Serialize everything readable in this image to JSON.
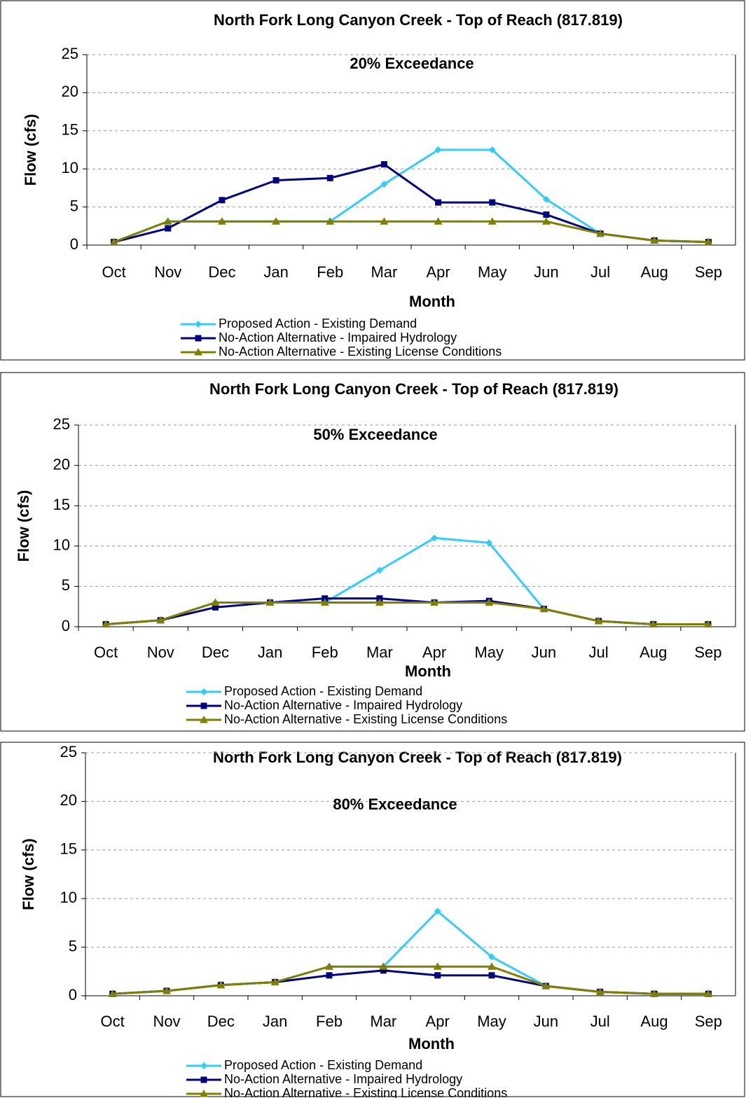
{
  "chart_data": [
    {
      "type": "line",
      "title": "North Fork Long Canyon Creek - Top of Reach (817.819)",
      "annotation": "20% Exceedance",
      "x_label": "Month",
      "y_label": "Flow (cfs)",
      "categories": [
        "Oct",
        "Nov",
        "Dec",
        "Jan",
        "Feb",
        "Mar",
        "Apr",
        "May",
        "Jun",
        "Jul",
        "Aug",
        "Sep"
      ],
      "ylim": [
        0,
        25
      ],
      "yticks": [
        0,
        5,
        10,
        15,
        20,
        25
      ],
      "grid": true,
      "series": [
        {
          "name": "Proposed Action - Existing Demand",
          "color": "#33ccff",
          "marker": "diamond",
          "values": [
            0.4,
            3.1,
            3.1,
            3.1,
            3.1,
            8,
            12.5,
            12.5,
            6,
            1.5,
            0.6,
            0.4
          ]
        },
        {
          "name": "No-Action Alternative - Impaired Hydrology",
          "color": "#000080",
          "marker": "square",
          "values": [
            0.4,
            2.2,
            5.9,
            8.5,
            8.8,
            10.6,
            5.6,
            5.6,
            4.0,
            1.5,
            0.6,
            0.4
          ]
        },
        {
          "name": "No-Action Alternative - Existing License Conditions",
          "color": "#808000",
          "marker": "triangle",
          "values": [
            0.4,
            3.1,
            3.1,
            3.1,
            3.1,
            3.1,
            3.1,
            3.1,
            3.1,
            1.5,
            0.6,
            0.4
          ]
        }
      ]
    },
    {
      "type": "line",
      "title": "North Fork Long Canyon Creek - Top of Reach (817.819)",
      "annotation": "50% Exceedance",
      "x_label": "Month",
      "y_label": "Flow (cfs)",
      "categories": [
        "Oct",
        "Nov",
        "Dec",
        "Jan",
        "Feb",
        "Mar",
        "Apr",
        "May",
        "Jun",
        "Jul",
        "Aug",
        "Sep"
      ],
      "ylim": [
        0,
        25
      ],
      "yticks": [
        0,
        5,
        10,
        15,
        20,
        25
      ],
      "grid": true,
      "series": [
        {
          "name": "Proposed Action - Existing Demand",
          "color": "#33ccff",
          "marker": "diamond",
          "values": [
            0.3,
            0.8,
            3.0,
            3.0,
            3.0,
            7.0,
            11.0,
            10.4,
            2.2,
            0.7,
            0.3,
            0.3
          ]
        },
        {
          "name": "No-Action Alternative - Impaired Hydrology",
          "color": "#000080",
          "marker": "square",
          "values": [
            0.3,
            0.8,
            2.4,
            3.0,
            3.5,
            3.5,
            3.0,
            3.2,
            2.2,
            0.7,
            0.3,
            0.3
          ]
        },
        {
          "name": "No-Action Alternative - Existing License Conditions",
          "color": "#808000",
          "marker": "triangle",
          "values": [
            0.3,
            0.8,
            3.0,
            3.0,
            3.0,
            3.0,
            3.0,
            3.0,
            2.2,
            0.7,
            0.3,
            0.3
          ]
        }
      ]
    },
    {
      "type": "line",
      "title": "North Fork Long Canyon Creek - Top of Reach (817.819)",
      "annotation": "80% Exceedance",
      "x_label": "Month",
      "y_label": "Flow (cfs)",
      "categories": [
        "Oct",
        "Nov",
        "Dec",
        "Jan",
        "Feb",
        "Mar",
        "Apr",
        "May",
        "Jun",
        "Jul",
        "Aug",
        "Sep"
      ],
      "ylim": [
        0,
        25
      ],
      "yticks": [
        0,
        5,
        10,
        15,
        20,
        25
      ],
      "grid": true,
      "series": [
        {
          "name": "Proposed Action - Existing Demand",
          "color": "#33ccff",
          "marker": "diamond",
          "values": [
            0.2,
            0.5,
            1.1,
            1.4,
            3.0,
            3.0,
            8.7,
            4.0,
            1.0,
            0.4,
            0.2,
            0.2
          ]
        },
        {
          "name": "No-Action Alternative - Impaired Hydrology",
          "color": "#000080",
          "marker": "square",
          "values": [
            0.2,
            0.5,
            1.1,
            1.4,
            2.1,
            2.6,
            2.1,
            2.1,
            1.0,
            0.4,
            0.2,
            0.2
          ]
        },
        {
          "name": "No-Action Alternative - Existing License Conditions",
          "color": "#808000",
          "marker": "triangle",
          "values": [
            0.2,
            0.5,
            1.1,
            1.4,
            3.0,
            3.0,
            3.0,
            3.0,
            1.0,
            0.4,
            0.2,
            0.2
          ]
        }
      ]
    }
  ]
}
